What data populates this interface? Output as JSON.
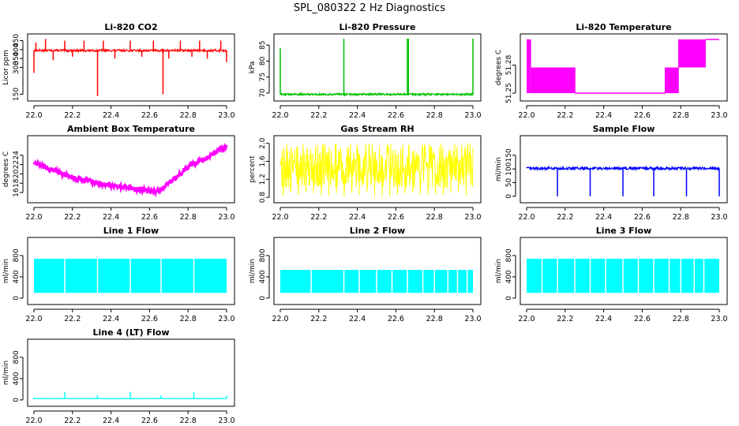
{
  "page_title": "SPL_080322  2 Hz Diagnostics",
  "chart_data": [
    {
      "type": "line",
      "title": "Li-820 CO2",
      "ylabel": "Licor ppm",
      "color": "#ff0000",
      "xlim": [
        22.0,
        23.0
      ],
      "ylim": [
        130,
        470
      ],
      "xticks": [
        22.0,
        22.2,
        22.4,
        22.6,
        22.8,
        23.0
      ],
      "xtick_labels": [
        "22.0",
        "22.2",
        "22.4",
        "22.6",
        "22.8",
        "23.0"
      ],
      "yticks": [
        150,
        300,
        350,
        400,
        450
      ],
      "ytick_labels": [
        "150",
        "300",
        "350",
        "400",
        "450"
      ],
      "baseline": 395,
      "noise": 6,
      "spikes": [
        [
          22.0,
          270
        ],
        [
          22.01,
          440
        ],
        [
          22.06,
          460
        ],
        [
          22.1,
          340
        ],
        [
          22.16,
          450
        ],
        [
          22.2,
          360
        ],
        [
          22.26,
          450
        ],
        [
          22.33,
          140
        ],
        [
          22.36,
          450
        ],
        [
          22.42,
          350
        ],
        [
          22.5,
          450
        ],
        [
          22.56,
          360
        ],
        [
          22.62,
          450
        ],
        [
          22.67,
          150
        ],
        [
          22.7,
          350
        ],
        [
          22.76,
          450
        ],
        [
          22.82,
          360
        ],
        [
          22.86,
          450
        ],
        [
          22.9,
          350
        ],
        [
          22.97,
          450
        ],
        [
          23.0,
          330
        ]
      ]
    },
    {
      "type": "line",
      "title": "Li-820 Pressure",
      "ylabel": "kPa",
      "color": "#00c000",
      "xlim": [
        22.0,
        23.0
      ],
      "ylim": [
        68.5,
        87.5
      ],
      "xticks": [
        22.0,
        22.2,
        22.4,
        22.6,
        22.8,
        23.0
      ],
      "xtick_labels": [
        "22.0",
        "22.2",
        "22.4",
        "22.6",
        "22.8",
        "23.0"
      ],
      "yticks": [
        70,
        75,
        80,
        85
      ],
      "ytick_labels": [
        "70",
        "75",
        "80",
        "85"
      ],
      "baseline": 69.6,
      "noise": 0.3,
      "spikes": [
        [
          22.0,
          84
        ],
        [
          22.33,
          87
        ],
        [
          22.66,
          87
        ],
        [
          22.665,
          87
        ],
        [
          23.0,
          87
        ]
      ]
    },
    {
      "type": "step",
      "title": "Li-820 Temperature",
      "ylabel": "degrees C",
      "color": "#ff00ff",
      "xlim": [
        22.0,
        23.0
      ],
      "ylim": [
        51.245,
        51.31
      ],
      "xticks": [
        22.0,
        22.2,
        22.4,
        22.6,
        22.8,
        23.0
      ],
      "xtick_labels": [
        "22.0",
        "22.2",
        "22.4",
        "22.6",
        "22.8",
        "23.0"
      ],
      "yticks": [
        51.25,
        51.28
      ],
      "ytick_labels": [
        "51.25",
        "51.28"
      ],
      "levels": [
        51.25,
        51.2775,
        51.3075
      ],
      "segments": [
        [
          22.0,
          22.02,
          2,
          0
        ],
        [
          22.02,
          22.25,
          1,
          0
        ],
        [
          22.25,
          22.72,
          0,
          0
        ],
        [
          22.72,
          22.79,
          1,
          0
        ],
        [
          22.79,
          22.93,
          2,
          1
        ],
        [
          22.93,
          23.0,
          2,
          2
        ]
      ]
    },
    {
      "type": "line",
      "title": "Ambient Box Temperature",
      "ylabel": "degrees C",
      "color": "#ff00ff",
      "xlim": [
        22.0,
        23.0
      ],
      "ylim": [
        14.5,
        27.5
      ],
      "xticks": [
        22.0,
        22.2,
        22.4,
        22.6,
        22.8,
        23.0
      ],
      "xtick_labels": [
        "22.0",
        "22.2",
        "22.4",
        "22.6",
        "22.8",
        "23.0"
      ],
      "yticks": [
        16,
        18,
        20,
        22,
        24
      ],
      "ytick_labels": [
        "16",
        "18",
        "20",
        "22",
        "24"
      ],
      "noise": 0.5,
      "trend": [
        [
          22.0,
          22.5
        ],
        [
          22.05,
          21.5
        ],
        [
          22.2,
          19.2
        ],
        [
          22.4,
          17.5
        ],
        [
          22.6,
          16.4
        ],
        [
          22.65,
          16.3
        ],
        [
          22.7,
          18.0
        ],
        [
          22.8,
          21.5
        ],
        [
          23.0,
          25.8
        ]
      ]
    },
    {
      "type": "line",
      "title": "Gas Stream RH",
      "ylabel": "percent",
      "color": "#ffff00",
      "xlim": [
        22.0,
        23.0
      ],
      "ylim": [
        0.75,
        2.1
      ],
      "xticks": [
        22.0,
        22.2,
        22.4,
        22.6,
        22.8,
        23.0
      ],
      "xtick_labels": [
        "22.0",
        "22.2",
        "22.4",
        "22.6",
        "22.8",
        "23.0"
      ],
      "yticks": [
        0.8,
        1.2,
        1.6,
        2.0
      ],
      "ytick_labels": [
        "0.8",
        "1.2",
        "1.6",
        "2.0"
      ],
      "band": [
        1.0,
        2.0
      ],
      "low_extreme": 0.82
    },
    {
      "type": "line",
      "title": "Sample Flow",
      "ylabel": "ml/min",
      "color": "#0000ff",
      "xlim": [
        22.0,
        23.0
      ],
      "ylim": [
        -12,
        210
      ],
      "xticks": [
        22.0,
        22.2,
        22.4,
        22.6,
        22.8,
        23.0
      ],
      "xtick_labels": [
        "22.0",
        "22.2",
        "22.4",
        "22.6",
        "22.8",
        "23.0"
      ],
      "yticks": [
        0,
        50,
        100,
        150
      ],
      "ytick_labels": [
        "0",
        "50",
        "100",
        "150"
      ],
      "baseline": 102,
      "noise": 5,
      "spikes": [
        [
          22.16,
          0
        ],
        [
          22.33,
          0
        ],
        [
          22.5,
          0
        ],
        [
          22.66,
          0
        ],
        [
          22.83,
          0
        ],
        [
          23.0,
          0
        ]
      ]
    },
    {
      "type": "band",
      "title": "Line 1 Flow",
      "ylabel": "ml/min",
      "color": "#00ffff",
      "xlim": [
        22.0,
        23.0
      ],
      "ylim": [
        -60,
        1080
      ],
      "xticks": [
        22.0,
        22.2,
        22.4,
        22.6,
        22.8,
        23.0
      ],
      "xtick_labels": [
        "22.0",
        "22.2",
        "22.4",
        "22.6",
        "22.8",
        "23.0"
      ],
      "yticks": [
        0,
        400,
        800
      ],
      "ytick_labels": [
        "0",
        "400",
        "800"
      ],
      "low": 100,
      "high": 740,
      "gaps": [
        22.16,
        22.33,
        22.5,
        22.66,
        22.83
      ]
    },
    {
      "type": "band",
      "title": "Line 2 Flow",
      "ylabel": "ml/min",
      "color": "#00ffff",
      "xlim": [
        22.0,
        23.0
      ],
      "ylim": [
        -60,
        1080
      ],
      "xticks": [
        22.0,
        22.2,
        22.4,
        22.6,
        22.8,
        23.0
      ],
      "xtick_labels": [
        "22.0",
        "22.2",
        "22.4",
        "22.6",
        "22.8",
        "23.0"
      ],
      "yticks": [
        0,
        400,
        800
      ],
      "ytick_labels": [
        "0",
        "400",
        "800"
      ],
      "low": 100,
      "high": 530,
      "gaps": [
        22.16,
        22.33,
        22.41,
        22.5,
        22.58,
        22.66,
        22.74,
        22.8,
        22.87,
        22.92,
        22.97
      ]
    },
    {
      "type": "band",
      "title": "Line 3 Flow",
      "ylabel": "ml/min",
      "color": "#00ffff",
      "xlim": [
        22.0,
        23.0
      ],
      "ylim": [
        -60,
        1080
      ],
      "xticks": [
        22.0,
        22.2,
        22.4,
        22.6,
        22.8,
        23.0
      ],
      "xtick_labels": [
        "22.0",
        "22.2",
        "22.4",
        "22.6",
        "22.8",
        "23.0"
      ],
      "yticks": [
        0,
        400,
        800
      ],
      "ytick_labels": [
        "0",
        "400",
        "800"
      ],
      "low": 100,
      "high": 740,
      "gaps": [
        22.08,
        22.16,
        22.25,
        22.33,
        22.41,
        22.5,
        22.58,
        22.66,
        22.74,
        22.8,
        22.87,
        22.92
      ]
    },
    {
      "type": "line",
      "title": "Line 4 (LT) Flow",
      "ylabel": "ml/min",
      "color": "#00ffff",
      "xlim": [
        22.0,
        23.0
      ],
      "ylim": [
        -60,
        1080
      ],
      "xticks": [
        22.0,
        22.2,
        22.4,
        22.6,
        22.8,
        23.0
      ],
      "xtick_labels": [
        "22.0",
        "22.2",
        "22.4",
        "22.6",
        "22.8",
        "23.0"
      ],
      "yticks": [
        0,
        400,
        800
      ],
      "ytick_labels": [
        "0",
        "400",
        "800"
      ],
      "baseline": 25,
      "noise": 4,
      "spikes": [
        [
          22.0,
          50
        ],
        [
          22.16,
          150
        ],
        [
          22.33,
          90
        ],
        [
          22.5,
          150
        ],
        [
          22.66,
          90
        ],
        [
          22.83,
          150
        ],
        [
          23.0,
          80
        ]
      ]
    }
  ]
}
